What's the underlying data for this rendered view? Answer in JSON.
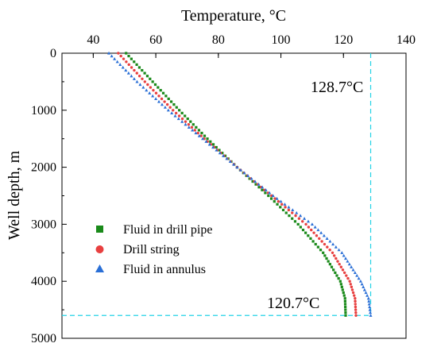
{
  "chart_data": {
    "type": "scatter",
    "title": "",
    "xlabel": "Temperature, °C",
    "ylabel": "Well depth, m",
    "xlim": [
      30,
      140
    ],
    "ylim": [
      0,
      5000
    ],
    "x_axis_position": "top",
    "y_axis_inverted": true,
    "x_ticks": [
      "40",
      "60",
      "80",
      "100",
      "120",
      "140"
    ],
    "y_ticks": [
      "0",
      "1000",
      "2000",
      "3000",
      "4000",
      "5000"
    ],
    "grid": false,
    "legend_position": "lower-left",
    "depth_points": [
      0,
      500,
      1000,
      1500,
      2000,
      2500,
      3000,
      3500,
      4000,
      4300,
      4600
    ],
    "series": [
      {
        "name": "Fluid in drill pipe",
        "marker": "square",
        "color": "#1a8a1a",
        "temperatures": [
          50.5,
          59.0,
          67.5,
          76.5,
          86.0,
          96.0,
          105.5,
          113.5,
          119.0,
          120.5,
          120.7
        ]
      },
      {
        "name": "Drill string",
        "marker": "circle",
        "color": "#e84040",
        "temperatures": [
          48.0,
          56.5,
          65.5,
          75.5,
          86.0,
          97.0,
          108.0,
          116.5,
          122.0,
          123.7,
          124.0
        ]
      },
      {
        "name": "Fluid in annulus",
        "marker": "triangle",
        "color": "#2a6fd6",
        "temperatures": [
          45.0,
          54.0,
          64.0,
          75.0,
          86.0,
          97.5,
          110.0,
          119.5,
          125.5,
          128.0,
          128.7
        ]
      }
    ],
    "annotations": [
      {
        "text": "128.7°C",
        "temperature": 128.7,
        "depth": 0,
        "line": "vertical",
        "color": "#22d3e6"
      },
      {
        "text": "120.7°C",
        "temperature": 120.7,
        "depth": 4600,
        "line": "horizontal",
        "color": "#22d3e6"
      }
    ]
  }
}
